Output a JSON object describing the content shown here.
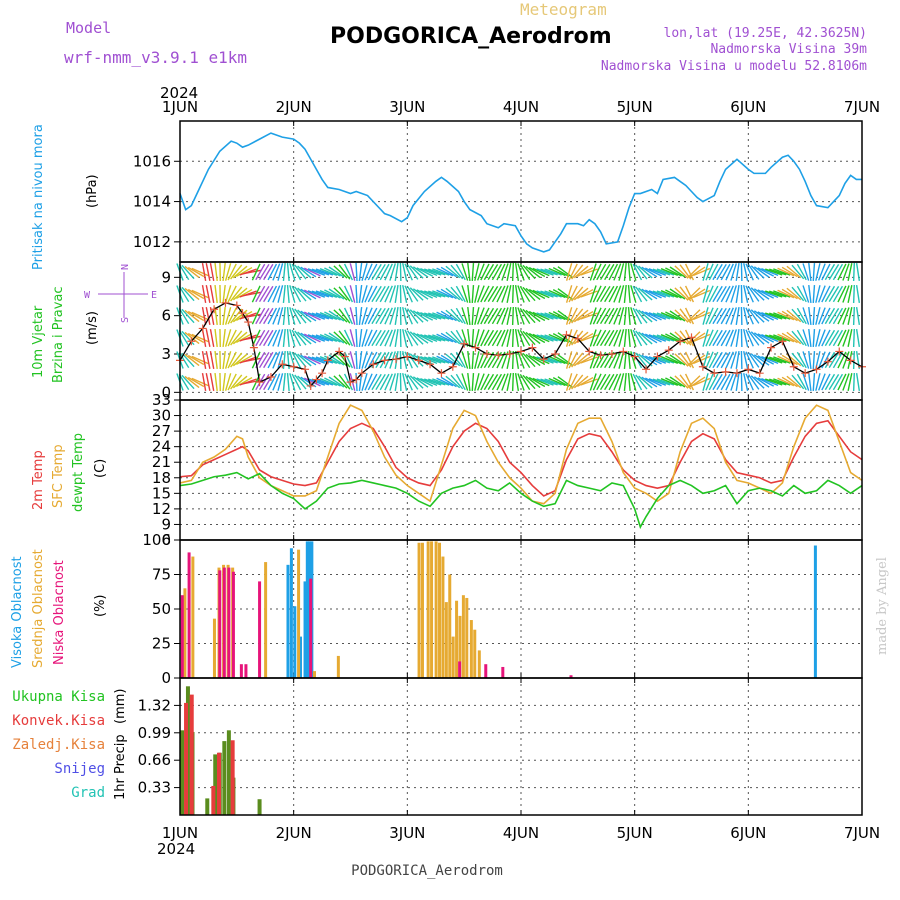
{
  "header": {
    "model_label": "Model",
    "model_name": "wrf-nmm_v3.9.1 e1km",
    "product": "Meteogram",
    "station": "PODGORICA_Aerodrom",
    "lonlat": "lon,lat (19.25E, 42.3625N)",
    "elevation": "Nadmorska Visina 39m",
    "model_elevation": "Nadmorska Visina u modelu 52.8106m",
    "year": "2024",
    "footer_station": "PODGORICA_Aerodrom",
    "credit": "made by Angel"
  },
  "colors": {
    "pressure": "#1ea0e6",
    "temp2m": "#e63c3c",
    "sfc": "#e6aa32",
    "dew": "#22c322",
    "high_cloud": "#1ea0e6",
    "mid_cloud": "#e6aa32",
    "low_cloud": "#e6147a",
    "total_precip": "#5a8c1e",
    "conv_precip": "#e63c3c",
    "title_purple": "#a050d2",
    "credit": "#c8c8c8"
  },
  "x_axis": {
    "ticks": [
      "1JUN",
      "2JUN",
      "3JUN",
      "4JUN",
      "5JUN",
      "6JUN",
      "7JUN"
    ],
    "range_days": [
      0,
      6
    ]
  },
  "chart_data": [
    {
      "type": "line",
      "panel": "pressure",
      "ylabel_lines": [
        "Pritisak na nivou mora"
      ],
      "unit": "(hPa)",
      "ylim": [
        1011,
        1018
      ],
      "yticks": [
        1012,
        1014,
        1016
      ],
      "series": [
        {
          "key": "pressure",
          "x": [
            0,
            0.05,
            0.1,
            0.15,
            0.25,
            0.35,
            0.45,
            0.5,
            0.55,
            0.6,
            0.7,
            0.8,
            0.9,
            1.0,
            1.05,
            1.1,
            1.15,
            1.2,
            1.25,
            1.3,
            1.4,
            1.5,
            1.55,
            1.65,
            1.75,
            1.8,
            1.85,
            1.95,
            2.0,
            2.05,
            2.15,
            2.25,
            2.3,
            2.35,
            2.45,
            2.5,
            2.55,
            2.65,
            2.7,
            2.8,
            2.85,
            2.95,
            3.0,
            3.05,
            3.1,
            3.2,
            3.25,
            3.35,
            3.4,
            3.45,
            3.5,
            3.55,
            3.6,
            3.65,
            3.7,
            3.75,
            3.85,
            3.9,
            3.95,
            4.0,
            4.05,
            4.15,
            4.2,
            4.25,
            4.35,
            4.4,
            4.45,
            4.5,
            4.55,
            4.6,
            4.7,
            4.75,
            4.8,
            4.9,
            5.0,
            5.05,
            5.15,
            5.2,
            5.3,
            5.35,
            5.4,
            5.45,
            5.5,
            5.55,
            5.6,
            5.7,
            5.75,
            5.8,
            5.85,
            5.9,
            5.95,
            6.0
          ],
          "y": [
            1014.4,
            1013.6,
            1013.8,
            1014.4,
            1015.6,
            1016.5,
            1017.0,
            1016.9,
            1016.7,
            1016.8,
            1017.1,
            1017.4,
            1017.2,
            1017.1,
            1016.9,
            1016.6,
            1016.1,
            1015.6,
            1015.1,
            1014.7,
            1014.6,
            1014.4,
            1014.5,
            1014.3,
            1013.7,
            1013.4,
            1013.3,
            1013.0,
            1013.2,
            1013.8,
            1014.5,
            1015.0,
            1015.2,
            1015.0,
            1014.5,
            1014.0,
            1013.6,
            1013.3,
            1012.9,
            1012.7,
            1012.9,
            1012.8,
            1012.3,
            1011.9,
            1011.7,
            1011.5,
            1011.6,
            1012.4,
            1012.9,
            1012.9,
            1012.9,
            1012.8,
            1013.1,
            1012.9,
            1012.5,
            1011.9,
            1012.0,
            1012.8,
            1013.7,
            1014.4,
            1014.4,
            1014.6,
            1014.4,
            1015.1,
            1015.2,
            1015.0,
            1014.8,
            1014.5,
            1014.2,
            1014.0,
            1014.3,
            1015.0,
            1015.6,
            1016.1,
            1015.6,
            1015.4,
            1015.4,
            1015.7,
            1016.2,
            1016.3,
            1016.0,
            1015.6,
            1015.0,
            1014.3,
            1013.8,
            1013.7,
            1014.0,
            1014.3,
            1014.9,
            1015.3,
            1015.1,
            1015.1
          ]
        }
      ]
    },
    {
      "type": "line",
      "panel": "wind",
      "ylabel_lines": [
        "10m Vjetar",
        "Brzina i Pravac"
      ],
      "unit": "(m/s)",
      "compass": {
        "n": "N",
        "w": "W",
        "e": "E",
        "s": "S"
      },
      "ylim": [
        -0.6,
        10.2
      ],
      "yticks": [
        0,
        3,
        6,
        9
      ],
      "series": [
        {
          "key": "wind_speed",
          "x": [
            0,
            0.1,
            0.2,
            0.3,
            0.4,
            0.5,
            0.55,
            0.6,
            0.65,
            0.7,
            0.8,
            0.9,
            1.0,
            1.1,
            1.15,
            1.2,
            1.25,
            1.3,
            1.4,
            1.45,
            1.5,
            1.55,
            1.6,
            1.7,
            1.8,
            1.9,
            2.0,
            2.1,
            2.2,
            2.3,
            2.4,
            2.5,
            2.6,
            2.7,
            2.8,
            2.9,
            3.0,
            3.1,
            3.2,
            3.3,
            3.4,
            3.5,
            3.6,
            3.7,
            3.8,
            3.9,
            4.0,
            4.1,
            4.2,
            4.3,
            4.4,
            4.5,
            4.6,
            4.7,
            4.8,
            4.9,
            5.0,
            5.1,
            5.2,
            5.3,
            5.4,
            5.5,
            5.6,
            5.7,
            5.8,
            5.9,
            6.0
          ],
          "y": [
            2.5,
            4.0,
            5.0,
            6.5,
            7.0,
            6.8,
            6.2,
            5.5,
            3.5,
            0.8,
            1.2,
            2.2,
            2.0,
            1.8,
            0.5,
            1.0,
            1.5,
            2.5,
            3.2,
            2.8,
            0.8,
            1.0,
            1.5,
            2.2,
            2.5,
            2.6,
            2.8,
            2.5,
            2.2,
            1.5,
            2.0,
            3.8,
            3.5,
            3.0,
            2.9,
            3.0,
            3.2,
            3.5,
            2.6,
            3.0,
            4.5,
            4.2,
            3.2,
            2.9,
            3.0,
            3.2,
            2.8,
            1.8,
            2.8,
            3.3,
            4.0,
            4.3,
            2.0,
            1.5,
            1.6,
            1.5,
            1.8,
            1.5,
            3.5,
            4.0,
            2.0,
            1.5,
            1.8,
            2.4,
            3.2,
            2.5,
            2.0
          ]
        }
      ]
    },
    {
      "type": "line",
      "panel": "temperature",
      "ylabel_lines": [
        "2m Temp",
        "SFC Temp",
        "dewpt Temp"
      ],
      "unit": "(C)",
      "ylim": [
        6,
        33
      ],
      "yticks": [
        6,
        9,
        12,
        15,
        18,
        21,
        24,
        27,
        30,
        33
      ],
      "series": [
        {
          "key": "temp2m",
          "x": [
            0,
            0.1,
            0.2,
            0.3,
            0.4,
            0.5,
            0.55,
            0.6,
            0.7,
            0.8,
            0.9,
            1.0,
            1.1,
            1.2,
            1.3,
            1.4,
            1.5,
            1.6,
            1.7,
            1.8,
            1.9,
            2.0,
            2.1,
            2.2,
            2.3,
            2.4,
            2.5,
            2.6,
            2.7,
            2.8,
            2.9,
            3.0,
            3.1,
            3.2,
            3.3,
            3.4,
            3.5,
            3.6,
            3.7,
            3.8,
            3.9,
            4.0,
            4.1,
            4.2,
            4.3,
            4.4,
            4.5,
            4.6,
            4.7,
            4.8,
            4.9,
            5.0,
            5.1,
            5.2,
            5.3,
            5.4,
            5.5,
            5.6,
            5.7,
            5.8,
            5.9,
            6.0
          ],
          "y": [
            18.2,
            18.4,
            20.5,
            21.5,
            22.5,
            23.5,
            24.0,
            23.2,
            19.5,
            18.2,
            17.5,
            16.8,
            16.5,
            17.0,
            21.0,
            25.0,
            27.5,
            28.5,
            27.5,
            24.0,
            20.0,
            18.0,
            17.0,
            16.5,
            19.5,
            24.0,
            27.0,
            28.5,
            27.5,
            25.0,
            21.0,
            19.0,
            16.5,
            14.5,
            15.5,
            21.5,
            25.5,
            26.5,
            26.0,
            23.0,
            19.5,
            17.5,
            16.5,
            16.0,
            16.5,
            21.0,
            25.0,
            26.5,
            25.5,
            21.5,
            19.0,
            18.5,
            18.0,
            17.0,
            17.5,
            22.0,
            26.0,
            28.5,
            29.0,
            26.0,
            23.0,
            21.5
          ]
        },
        {
          "key": "sfc",
          "x": [
            0,
            0.1,
            0.2,
            0.3,
            0.4,
            0.5,
            0.55,
            0.6,
            0.7,
            0.8,
            0.9,
            1.0,
            1.1,
            1.2,
            1.3,
            1.4,
            1.5,
            1.6,
            1.7,
            1.8,
            1.9,
            2.0,
            2.1,
            2.2,
            2.3,
            2.4,
            2.5,
            2.6,
            2.7,
            2.8,
            2.9,
            3.0,
            3.1,
            3.2,
            3.3,
            3.4,
            3.5,
            3.6,
            3.7,
            3.8,
            3.9,
            4.0,
            4.1,
            4.2,
            4.3,
            4.4,
            4.5,
            4.6,
            4.7,
            4.8,
            4.9,
            5.0,
            5.1,
            5.2,
            5.3,
            5.4,
            5.5,
            5.6,
            5.7,
            5.8,
            5.9,
            6.0
          ],
          "y": [
            17.0,
            17.5,
            21.0,
            22.0,
            23.5,
            26.0,
            25.5,
            22.0,
            18.0,
            16.5,
            15.5,
            14.5,
            14.5,
            15.5,
            22.0,
            28.5,
            32.0,
            31.0,
            27.0,
            22.0,
            18.5,
            16.5,
            15.0,
            13.5,
            20.5,
            27.5,
            31.0,
            30.0,
            25.0,
            21.0,
            18.0,
            16.0,
            13.5,
            13.0,
            15.0,
            23.5,
            28.5,
            29.5,
            29.5,
            25.0,
            19.0,
            16.0,
            15.0,
            13.5,
            15.0,
            23.0,
            28.5,
            29.5,
            27.5,
            21.0,
            17.5,
            17.0,
            16.0,
            15.0,
            17.0,
            24.0,
            29.5,
            32.0,
            31.0,
            25.0,
            19.0,
            17.5
          ]
        },
        {
          "key": "dew",
          "x": [
            0,
            0.1,
            0.2,
            0.3,
            0.4,
            0.5,
            0.6,
            0.7,
            0.8,
            0.9,
            1.0,
            1.1,
            1.2,
            1.3,
            1.4,
            1.5,
            1.6,
            1.7,
            1.8,
            1.9,
            2.0,
            2.1,
            2.2,
            2.3,
            2.4,
            2.5,
            2.6,
            2.7,
            2.8,
            2.9,
            3.0,
            3.1,
            3.2,
            3.3,
            3.4,
            3.5,
            3.6,
            3.7,
            3.8,
            3.9,
            4.0,
            4.05,
            4.1,
            4.2,
            4.3,
            4.4,
            4.5,
            4.6,
            4.7,
            4.8,
            4.9,
            5.0,
            5.1,
            5.2,
            5.3,
            5.4,
            5.5,
            5.6,
            5.7,
            5.8,
            5.9,
            6.0
          ],
          "y": [
            16.5,
            16.8,
            17.5,
            18.2,
            18.5,
            19.0,
            17.8,
            18.8,
            16.5,
            15.0,
            14.0,
            12.0,
            13.5,
            16.0,
            16.8,
            17.0,
            17.5,
            17.0,
            16.5,
            16.0,
            15.0,
            13.5,
            12.5,
            15.0,
            16.0,
            16.5,
            17.5,
            16.0,
            15.5,
            17.0,
            15.0,
            13.5,
            12.5,
            13.0,
            17.5,
            16.5,
            16.0,
            15.5,
            17.0,
            16.5,
            12.0,
            8.5,
            10.5,
            14.0,
            16.5,
            17.5,
            16.5,
            15.0,
            15.5,
            16.5,
            13.0,
            15.5,
            16.0,
            15.5,
            14.5,
            16.5,
            15.0,
            15.5,
            17.5,
            16.5,
            15.0,
            16.5
          ]
        }
      ]
    },
    {
      "type": "bar",
      "panel": "clouds",
      "ylabel_lines": [
        "Visoka Oblacnost",
        "Srednja Oblacnost",
        "Niska Oblacnost"
      ],
      "unit": "(%)",
      "ylim": [
        0,
        100
      ],
      "yticks": [
        0,
        25,
        50,
        75,
        100
      ],
      "series": [
        {
          "key": "high_cloud",
          "x": [
            0.95,
            0.98,
            1.01,
            1.06,
            1.1,
            1.12,
            1.14,
            1.16,
            5.59
          ],
          "values": [
            82,
            94,
            52,
            30,
            70,
            99,
            99,
            99,
            96
          ]
        },
        {
          "key": "mid_cloud",
          "x": [
            0.03,
            0.1,
            0.29,
            0.33,
            0.37,
            0.41,
            0.45,
            0.74,
            1.03,
            1.17,
            1.38,
            2.09,
            2.12,
            2.17,
            2.2,
            2.24,
            2.27,
            2.3,
            2.33,
            2.36,
            2.39,
            2.42,
            2.45,
            2.48,
            2.51,
            2.55,
            2.58,
            2.62
          ],
          "values": [
            65,
            88,
            43,
            80,
            82,
            82,
            80,
            84,
            93,
            5,
            16,
            98,
            98,
            99,
            99,
            99,
            98,
            88,
            55,
            75,
            30,
            56,
            45,
            60,
            58,
            42,
            35,
            20
          ]
        },
        {
          "key": "low_cloud",
          "x": [
            0.02,
            0.08,
            0.35,
            0.39,
            0.43,
            0.47,
            0.54,
            0.58,
            0.7,
            1.15,
            2.46,
            2.69,
            2.84,
            3.44
          ],
          "values": [
            60,
            91,
            78,
            80,
            80,
            77,
            10,
            10,
            70,
            72,
            12,
            10,
            8,
            2
          ]
        }
      ]
    },
    {
      "type": "bar",
      "panel": "precipitation",
      "ylabel_lines": [
        "1hr Precip"
      ],
      "unit": "(mm)",
      "legend": [
        "Ukupna Kisa",
        "Konvek.Kisa",
        "Zaledj.Kisa",
        "Snijeg",
        "Grad"
      ],
      "ylim": [
        0,
        1.65
      ],
      "yticks": [
        0.33,
        0.66,
        0.99,
        1.32
      ],
      "series": [
        {
          "key": "total_precip",
          "x": [
            0.02,
            0.07,
            0.11,
            0.24,
            0.31,
            0.35,
            0.39,
            0.43,
            0.47,
            0.7
          ],
          "values": [
            1.02,
            1.55,
            1.0,
            0.2,
            0.73,
            0.75,
            0.89,
            1.02,
            0.45,
            0.19
          ]
        },
        {
          "key": "conv_precip",
          "x": [
            0.04,
            0.09,
            0.28,
            0.33,
            0.45
          ],
          "values": [
            1.35,
            1.45,
            0.35,
            0.75,
            0.9
          ]
        }
      ]
    }
  ]
}
